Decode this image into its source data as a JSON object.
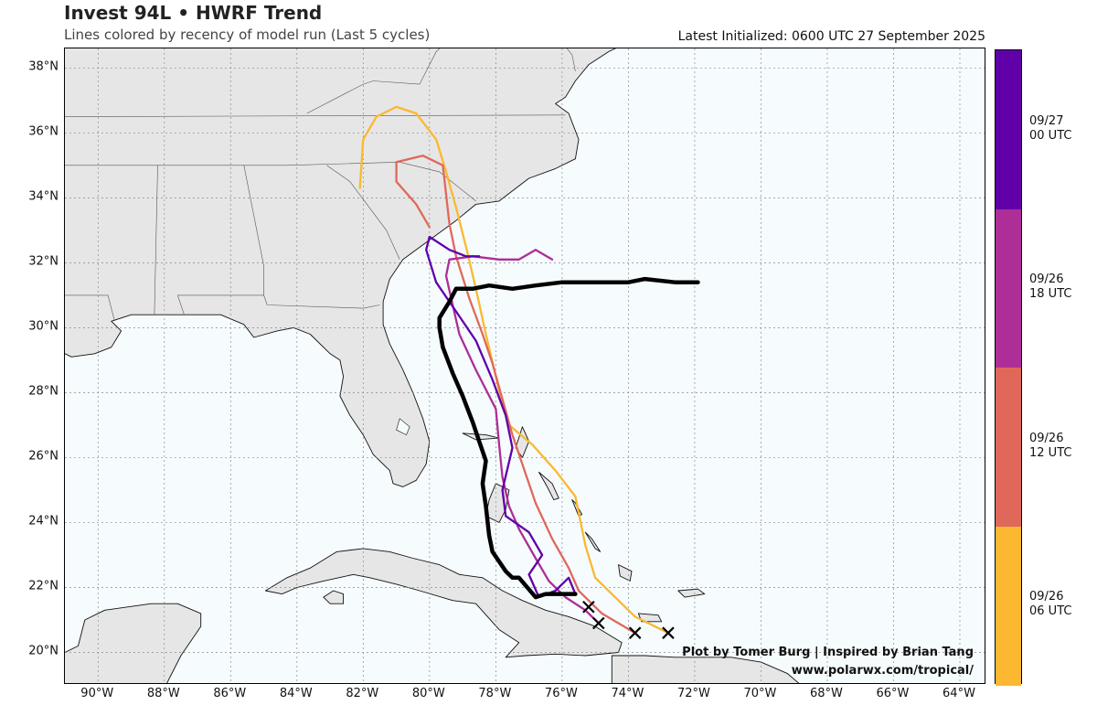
{
  "title": "Invest 94L • HWRF Trend",
  "subtitle": "Lines colored by recency of model run (Last 5 cycles)",
  "initialized": "Latest Initialized: 0600 UTC 27 September 2025",
  "credit_line1": "Plot by Tomer Burg | Inspired by Brian Tang",
  "credit_line2": "www.polarwx.com/tropical/",
  "map": {
    "lon_range": [
      -91.0,
      -63.2
    ],
    "lat_range": [
      19.0,
      38.6
    ],
    "lat_ticks": [
      "20°N",
      "22°N",
      "24°N",
      "26°N",
      "28°N",
      "30°N",
      "32°N",
      "34°N",
      "36°N",
      "38°N"
    ],
    "lon_ticks": [
      "90°W",
      "88°W",
      "86°W",
      "84°W",
      "82°W",
      "80°W",
      "78°W",
      "76°W",
      "74°W",
      "72°W",
      "70°W",
      "68°W",
      "66°W",
      "64°W"
    ],
    "land_color": "#e6e6e6",
    "ocean_color": "#f6fbfd"
  },
  "colorbar": [
    {
      "label_line1": "09/27",
      "label_line2": "00 UTC",
      "color": "#6000a8"
    },
    {
      "label_line1": "09/26",
      "label_line2": "18 UTC",
      "color": "#ad2e96"
    },
    {
      "label_line1": "09/26",
      "label_line2": "12 UTC",
      "color": "#e0685a"
    },
    {
      "label_line1": "09/26",
      "label_line2": "06 UTC",
      "color": "#fbb830"
    }
  ],
  "tracks": [
    {
      "cycle": "09/26 06 UTC",
      "color": "#fbb830",
      "points": [
        [
          -72.8,
          20.6
        ],
        [
          -73.8,
          21.1
        ],
        [
          -74.3,
          21.6
        ],
        [
          -75.0,
          22.3
        ],
        [
          -75.3,
          23.3
        ],
        [
          -75.6,
          24.8
        ],
        [
          -76.2,
          25.6
        ],
        [
          -76.9,
          26.4
        ],
        [
          -77.6,
          27.0
        ],
        [
          -77.8,
          27.6
        ],
        [
          -78.0,
          28.5
        ],
        [
          -78.3,
          29.8
        ],
        [
          -78.6,
          31.2
        ],
        [
          -78.9,
          32.5
        ],
        [
          -79.2,
          33.7
        ],
        [
          -79.5,
          34.8
        ],
        [
          -79.8,
          35.8
        ],
        [
          -80.4,
          36.6
        ],
        [
          -81.0,
          36.8
        ],
        [
          -81.6,
          36.5
        ],
        [
          -82.0,
          35.8
        ],
        [
          -82.1,
          34.3
        ]
      ]
    },
    {
      "cycle": "09/26 12 UTC",
      "color": "#e0685a",
      "points": [
        [
          -73.8,
          20.6
        ],
        [
          -74.8,
          21.2
        ],
        [
          -75.5,
          21.9
        ],
        [
          -75.8,
          22.6
        ],
        [
          -76.3,
          23.5
        ],
        [
          -76.8,
          24.6
        ],
        [
          -77.1,
          25.5
        ],
        [
          -77.5,
          26.7
        ],
        [
          -77.8,
          27.8
        ],
        [
          -78.1,
          28.9
        ],
        [
          -78.4,
          29.8
        ],
        [
          -78.8,
          30.9
        ],
        [
          -79.2,
          32.2
        ],
        [
          -79.4,
          33.2
        ],
        [
          -79.5,
          34.1
        ],
        [
          -79.6,
          35.0
        ],
        [
          -80.2,
          35.3
        ],
        [
          -80.6,
          35.2
        ],
        [
          -81.0,
          35.1
        ],
        [
          -81.0,
          34.5
        ],
        [
          -80.4,
          33.8
        ],
        [
          -80.0,
          33.1
        ]
      ]
    },
    {
      "cycle": "09/26 18 UTC",
      "color": "#ad2e96",
      "points": [
        [
          -74.9,
          20.9
        ],
        [
          -75.3,
          21.3
        ],
        [
          -75.9,
          21.7
        ],
        [
          -76.4,
          22.2
        ],
        [
          -76.8,
          22.9
        ],
        [
          -77.3,
          23.8
        ],
        [
          -77.6,
          24.5
        ],
        [
          -77.8,
          25.4
        ],
        [
          -77.9,
          26.4
        ],
        [
          -78.0,
          27.5
        ],
        [
          -78.6,
          28.7
        ],
        [
          -79.1,
          29.8
        ],
        [
          -79.3,
          30.7
        ],
        [
          -79.5,
          31.6
        ],
        [
          -79.4,
          32.1
        ],
        [
          -78.7,
          32.2
        ],
        [
          -77.9,
          32.1
        ],
        [
          -77.3,
          32.1
        ],
        [
          -76.8,
          32.4
        ],
        [
          -76.3,
          32.1
        ]
      ]
    },
    {
      "cycle": "09/27 00 UTC",
      "color": "#6000a8",
      "points": [
        [
          -75.6,
          21.8
        ],
        [
          -75.8,
          22.3
        ],
        [
          -76.2,
          21.9
        ],
        [
          -76.7,
          21.7
        ],
        [
          -77.0,
          22.4
        ],
        [
          -76.6,
          23.0
        ],
        [
          -77.0,
          23.7
        ],
        [
          -77.7,
          24.2
        ],
        [
          -77.8,
          25.0
        ],
        [
          -77.5,
          26.3
        ],
        [
          -77.7,
          27.3
        ],
        [
          -78.1,
          28.4
        ],
        [
          -78.6,
          29.6
        ],
        [
          -79.2,
          30.5
        ],
        [
          -79.8,
          31.4
        ],
        [
          -80.1,
          32.4
        ],
        [
          -80.0,
          32.8
        ],
        [
          -79.4,
          32.4
        ],
        [
          -78.9,
          32.2
        ],
        [
          -78.5,
          32.2
        ]
      ]
    },
    {
      "cycle": "09/27 06 UTC",
      "color": "#000000",
      "points": [
        [
          -75.6,
          21.8
        ],
        [
          -76.5,
          21.8
        ],
        [
          -76.8,
          21.7
        ],
        [
          -77.3,
          22.3
        ],
        [
          -77.5,
          22.3
        ],
        [
          -77.7,
          22.5
        ],
        [
          -78.1,
          23.1
        ],
        [
          -78.2,
          23.6
        ],
        [
          -78.3,
          24.5
        ],
        [
          -78.4,
          25.2
        ],
        [
          -78.3,
          25.9
        ],
        [
          -78.5,
          26.5
        ],
        [
          -78.7,
          27.1
        ],
        [
          -79.0,
          27.9
        ],
        [
          -79.3,
          28.6
        ],
        [
          -79.6,
          29.4
        ],
        [
          -79.7,
          30.0
        ],
        [
          -79.7,
          30.3
        ],
        [
          -79.4,
          30.8
        ],
        [
          -79.2,
          31.2
        ],
        [
          -78.7,
          31.2
        ],
        [
          -78.2,
          31.3
        ],
        [
          -77.5,
          31.2
        ],
        [
          -76.8,
          31.3
        ],
        [
          -76.0,
          31.4
        ],
        [
          -75.0,
          31.4
        ],
        [
          -74.0,
          31.4
        ],
        [
          -73.5,
          31.5
        ],
        [
          -72.6,
          31.4
        ],
        [
          -71.9,
          31.4
        ]
      ]
    }
  ],
  "start_markers": [
    [
      -75.2,
      21.4
    ],
    [
      -74.9,
      20.9
    ],
    [
      -73.8,
      20.6
    ],
    [
      -72.8,
      20.6
    ]
  ]
}
